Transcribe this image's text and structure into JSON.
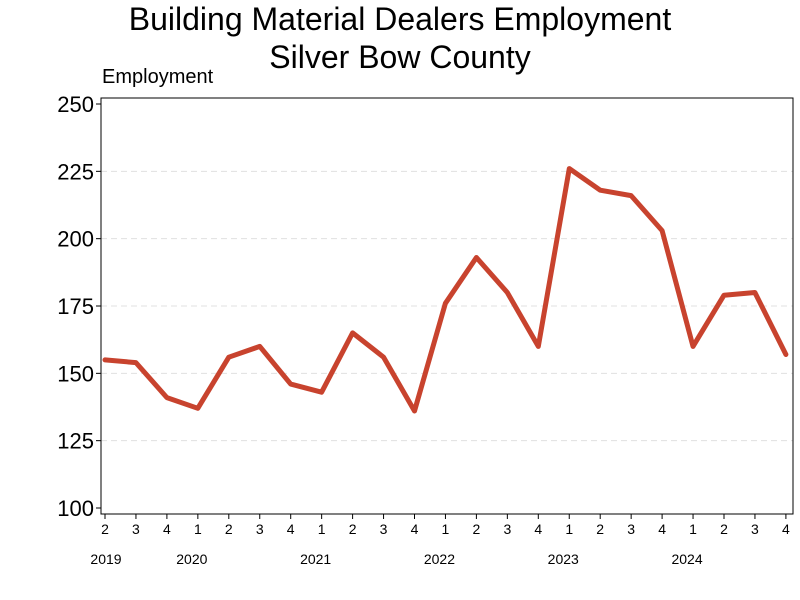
{
  "chart_data": {
    "type": "line",
    "title_line1": "Building Material Dealers Employment",
    "title_line2": "Silver Bow County",
    "xlabel": "",
    "ylabel": "Employment",
    "ylim": [
      100,
      250
    ],
    "yticks": [
      100,
      125,
      150,
      175,
      200,
      225,
      250
    ],
    "grid": true,
    "line_color": "#C8432E",
    "grid_color": "#E0E0E0",
    "x": [
      {
        "quarter": "2",
        "year": "2019"
      },
      {
        "quarter": "3",
        "year": "2019"
      },
      {
        "quarter": "4",
        "year": "2019"
      },
      {
        "quarter": "1",
        "year": "2020"
      },
      {
        "quarter": "2",
        "year": "2020"
      },
      {
        "quarter": "3",
        "year": "2020"
      },
      {
        "quarter": "4",
        "year": "2020"
      },
      {
        "quarter": "1",
        "year": "2021"
      },
      {
        "quarter": "2",
        "year": "2021"
      },
      {
        "quarter": "3",
        "year": "2021"
      },
      {
        "quarter": "4",
        "year": "2021"
      },
      {
        "quarter": "1",
        "year": "2022"
      },
      {
        "quarter": "2",
        "year": "2022"
      },
      {
        "quarter": "3",
        "year": "2022"
      },
      {
        "quarter": "4",
        "year": "2022"
      },
      {
        "quarter": "1",
        "year": "2023"
      },
      {
        "quarter": "2",
        "year": "2023"
      },
      {
        "quarter": "3",
        "year": "2023"
      },
      {
        "quarter": "4",
        "year": "2023"
      },
      {
        "quarter": "1",
        "year": "2024"
      },
      {
        "quarter": "2",
        "year": "2024"
      },
      {
        "quarter": "3",
        "year": "2024"
      },
      {
        "quarter": "4",
        "year": "2024"
      }
    ],
    "years": [
      {
        "label": "2019",
        "first_index": 0
      },
      {
        "label": "2020",
        "first_index": 3
      },
      {
        "label": "2021",
        "first_index": 7
      },
      {
        "label": "2022",
        "first_index": 11
      },
      {
        "label": "2023",
        "first_index": 15
      },
      {
        "label": "2024",
        "first_index": 19
      }
    ],
    "series": [
      {
        "values": [
          155,
          154,
          141,
          137,
          156,
          160,
          146,
          143,
          165,
          156,
          136,
          176,
          193,
          180,
          160,
          226,
          218,
          216,
          203,
          160,
          179,
          180,
          157
        ]
      }
    ]
  }
}
